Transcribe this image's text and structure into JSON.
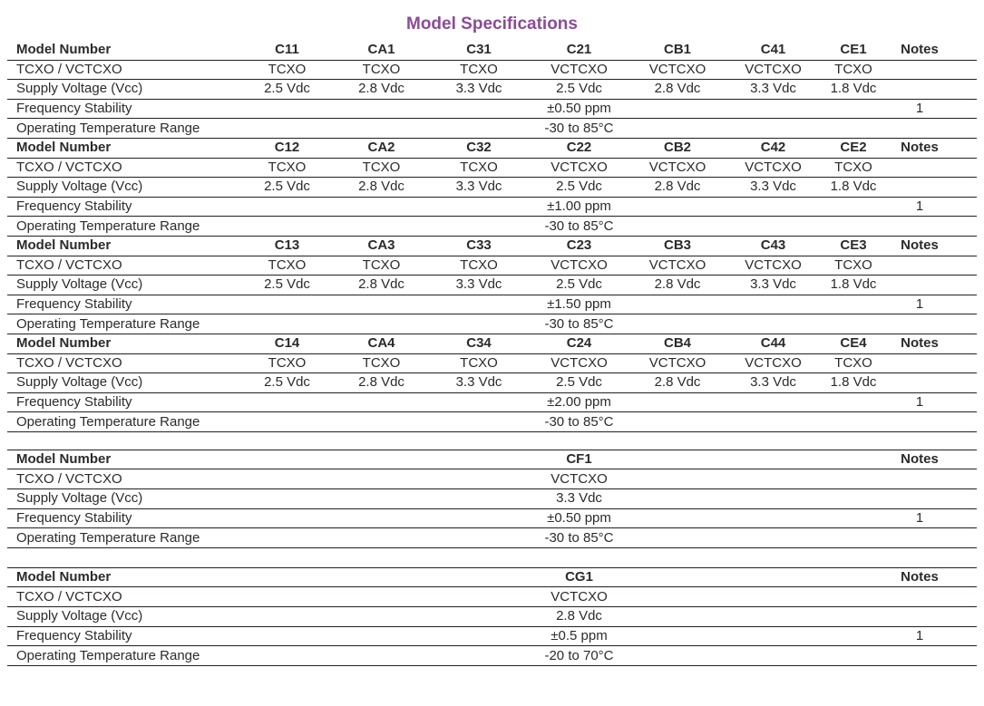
{
  "title": "Model Specifications",
  "colors": {
    "title": "#8c4a99",
    "text": "#2b2b2b",
    "line": "#231f20"
  },
  "row_labels": [
    "Model Number",
    "TCXO / VCTCXO",
    "Supply Voltage (Vcc)",
    "Frequency Stability",
    "Operating Temperature Range"
  ],
  "notes_label": "Notes",
  "blocks": [
    {
      "models": [
        "C11",
        "CA1",
        "C31",
        "C21",
        "CB1",
        "C41",
        "CE1"
      ],
      "types": [
        "TCXO",
        "TCXO",
        "TCXO",
        "VCTCXO",
        "VCTCXO",
        "VCTCXO",
        "TCXO"
      ],
      "voltages": [
        "2.5 Vdc",
        "2.8 Vdc",
        "3.3 Vdc",
        "2.5 Vdc",
        "2.8 Vdc",
        "3.3 Vdc",
        "1.8 Vdc"
      ],
      "stability": "±0.50 ppm",
      "stability_note": "1",
      "temp_range": "-30 to 85°C"
    },
    {
      "models": [
        "C12",
        "CA2",
        "C32",
        "C22",
        "CB2",
        "C42",
        "CE2"
      ],
      "types": [
        "TCXO",
        "TCXO",
        "TCXO",
        "VCTCXO",
        "VCTCXO",
        "VCTCXO",
        "TCXO"
      ],
      "voltages": [
        "2.5 Vdc",
        "2.8 Vdc",
        "3.3 Vdc",
        "2.5 Vdc",
        "2.8 Vdc",
        "3.3 Vdc",
        "1.8 Vdc"
      ],
      "stability": "±1.00 ppm",
      "stability_note": "1",
      "temp_range": "-30 to 85°C"
    },
    {
      "models": [
        "C13",
        "CA3",
        "C33",
        "C23",
        "CB3",
        "C43",
        "CE3"
      ],
      "types": [
        "TCXO",
        "TCXO",
        "TCXO",
        "VCTCXO",
        "VCTCXO",
        "VCTCXO",
        "TCXO"
      ],
      "voltages": [
        "2.5 Vdc",
        "2.8 Vdc",
        "3.3 Vdc",
        "2.5 Vdc",
        "2.8 Vdc",
        "3.3 Vdc",
        "1.8 Vdc"
      ],
      "stability": "±1.50 ppm",
      "stability_note": "1",
      "temp_range": "-30 to 85°C"
    },
    {
      "models": [
        "C14",
        "CA4",
        "C34",
        "C24",
        "CB4",
        "C44",
        "CE4"
      ],
      "types": [
        "TCXO",
        "TCXO",
        "TCXO",
        "VCTCXO",
        "VCTCXO",
        "VCTCXO",
        "TCXO"
      ],
      "voltages": [
        "2.5 Vdc",
        "2.8 Vdc",
        "3.3 Vdc",
        "2.5 Vdc",
        "2.8 Vdc",
        "3.3 Vdc",
        "1.8 Vdc"
      ],
      "stability": "±2.00 ppm",
      "stability_note": "1",
      "temp_range": "-30 to 85°C"
    },
    {
      "models": [
        "CF1"
      ],
      "types": [
        "VCTCXO"
      ],
      "voltages": [
        "3.3 Vdc"
      ],
      "stability": "±0.50 ppm",
      "stability_note": "1",
      "temp_range": "-30 to 85°C"
    },
    {
      "models": [
        "CG1"
      ],
      "types": [
        "VCTCXO"
      ],
      "voltages": [
        "2.8 Vdc"
      ],
      "stability": "±0.5 ppm",
      "stability_note": "1",
      "temp_range": "-20 to 70°C"
    }
  ]
}
